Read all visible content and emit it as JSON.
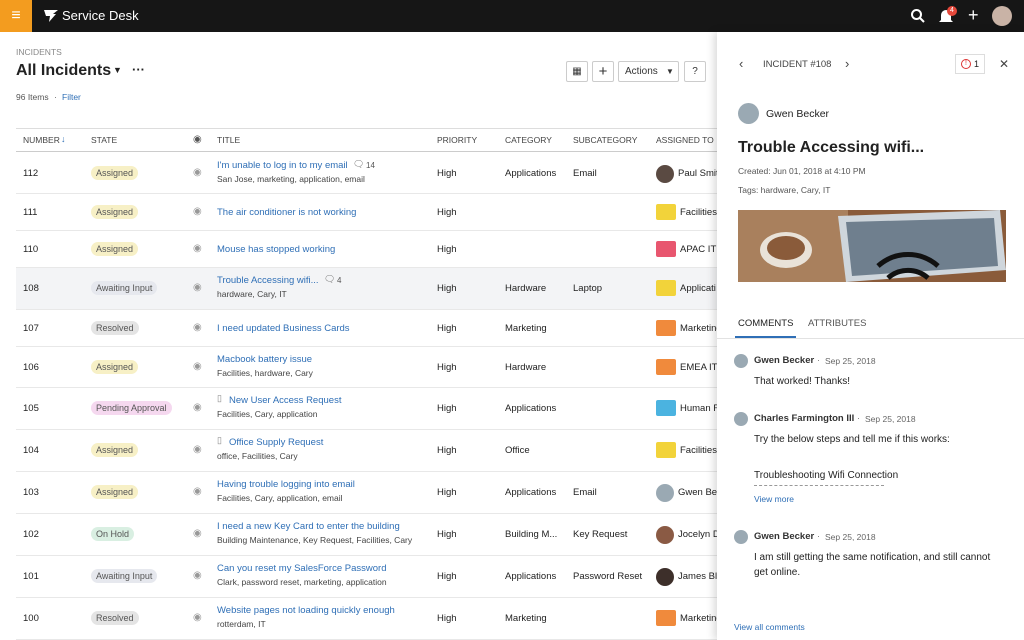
{
  "header": {
    "app_title": "Service Desk",
    "notification_count": "4"
  },
  "breadcrumb": "INCIDENTS",
  "view_title": "All Incidents",
  "item_count": "96 Items",
  "filter": "Filter",
  "toolbar": {
    "actions": "Actions",
    "help": "?"
  },
  "table": {
    "columns": [
      "NUMBER",
      "STATE",
      "TITLE",
      "PRIORITY",
      "CATEGORY",
      "SUBCATEGORY",
      "ASSIGNED TO"
    ],
    "rows": [
      {
        "number": 112,
        "state": "Assigned",
        "state_color": "#f7f0c6",
        "title": "I'm unable to log in to my email",
        "comments": "14",
        "tags": "San Jose, marketing, application, email",
        "priority": "High",
        "category": "Applications",
        "subcategory": "Email",
        "assigned_to": "Paul Smit",
        "assignee_kind": "person",
        "assignee_color": "#5a4a42"
      },
      {
        "number": 111,
        "state": "Assigned",
        "state_color": "#f7f0c6",
        "title": "The air conditioner is not working",
        "priority": "High",
        "category": "",
        "subcategory": "",
        "assigned_to": "Facilities",
        "assignee_kind": "group",
        "assignee_color": "#f2d33a"
      },
      {
        "number": 110,
        "state": "Assigned",
        "state_color": "#f7f0c6",
        "title": "Mouse has stopped working",
        "priority": "High",
        "category": "",
        "subcategory": "",
        "assigned_to": "APAC IT A",
        "assignee_kind": "group",
        "assignee_color": "#e8566f"
      },
      {
        "number": 108,
        "state": "Awaiting Input",
        "state_color": "#e6e8ee",
        "title": "Trouble Accessing wifi...",
        "comments": "4",
        "tags": "hardware, Cary, IT",
        "priority": "High",
        "category": "Hardware",
        "subcategory": "Laptop",
        "assigned_to": "Applicati",
        "assignee_kind": "group",
        "assignee_color": "#f2d33a"
      },
      {
        "number": 107,
        "state": "Resolved",
        "state_color": "#e4e4e4",
        "title": "I need updated Business Cards",
        "priority": "High",
        "category": "Marketing",
        "subcategory": "",
        "assigned_to": "Marketing",
        "assignee_kind": "group",
        "assignee_color": "#f08a3c"
      },
      {
        "number": 106,
        "state": "Assigned",
        "state_color": "#f7f0c6",
        "title": "Macbook battery issue",
        "tags": "Facilities, hardware, Cary",
        "priority": "High",
        "category": "Hardware",
        "subcategory": "",
        "assigned_to": "EMEA IT A",
        "assignee_kind": "group",
        "assignee_color": "#f08a3c"
      },
      {
        "number": 105,
        "state": "Pending Approval",
        "state_color": "#f5d8ef",
        "title": "New User Access Request",
        "doc": true,
        "tags": "Facilities, Cary, application",
        "priority": "High",
        "category": "Applications",
        "subcategory": "",
        "assigned_to": "Human R",
        "assignee_kind": "group",
        "assignee_color": "#4bb3e0"
      },
      {
        "number": 104,
        "state": "Assigned",
        "state_color": "#f7f0c6",
        "title": "Office Supply Request",
        "doc": true,
        "tags": "office, Facilities, Cary",
        "priority": "High",
        "category": "Office",
        "subcategory": "",
        "assigned_to": "Facilities",
        "assignee_kind": "group",
        "assignee_color": "#f2d33a"
      },
      {
        "number": 103,
        "state": "Assigned",
        "state_color": "#f7f0c6",
        "title": "Having trouble logging into email",
        "tags": "Facilities, Cary, application, email",
        "priority": "High",
        "category": "Applications",
        "subcategory": "Email",
        "assigned_to": "Gwen Be",
        "assignee_kind": "person",
        "assignee_color": "#9aa9b3"
      },
      {
        "number": 102,
        "state": "On Hold",
        "state_color": "#d9efe2",
        "title": "I need a new Key Card to enter the building",
        "tags": "Building Maintenance, Key Request, Facilities, Cary",
        "priority": "High",
        "category": "Building M...",
        "subcategory": "Key Request",
        "assigned_to": "Jocelyn D",
        "assignee_kind": "person",
        "assignee_color": "#8a5a44"
      },
      {
        "number": 101,
        "state": "Awaiting Input",
        "state_color": "#e6e8ee",
        "title": "Can you reset my SalesForce Password",
        "tags": "Clark, password reset, marketing, application",
        "priority": "High",
        "category": "Applications",
        "subcategory": "Password Reset",
        "assigned_to": "James Bla",
        "assignee_kind": "person",
        "assignee_color": "#3d2f2a"
      },
      {
        "number": 100,
        "state": "Resolved",
        "state_color": "#e4e4e4",
        "title": "Website pages not loading quickly enough",
        "tags": "rotterdam, IT",
        "priority": "High",
        "category": "Marketing",
        "subcategory": "",
        "assigned_to": "Marketing",
        "assignee_kind": "group",
        "assignee_color": "#f08a3c"
      }
    ]
  },
  "detail": {
    "incident": "INCIDENT #108",
    "alert_count": "1",
    "requester": "Gwen Becker",
    "title": "Trouble Accessing wifi...",
    "created": "Created: Jun 01, 2018 at 4:10 PM",
    "tags": "Tags: hardware, Cary, IT",
    "tabs": [
      "COMMENTS",
      "ATTRIBUTES"
    ],
    "comments": [
      {
        "author": "Gwen Becker",
        "date": "Sep 25, 2018",
        "text": "That worked! Thanks!"
      },
      {
        "author": "Charles Farmington III",
        "date": "Sep 25, 2018",
        "text": "Try the below steps and tell me if this works:",
        "extra": "Troubleshooting Wifi Connection",
        "more": "View more"
      },
      {
        "author": "Gwen Becker",
        "date": "Sep 25, 2018",
        "text": "I am still getting the same notification, and still cannot get online."
      }
    ],
    "view_all": "View all comments"
  }
}
